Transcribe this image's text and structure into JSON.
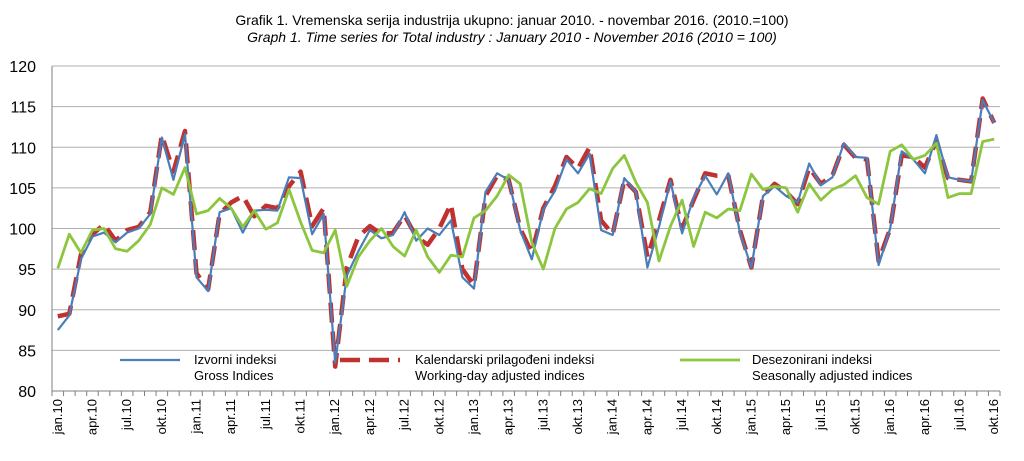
{
  "title": "Grafik 1. Vremenska serija industrija ukupno: januar 2010. - novembar 2016. (2010.=100)",
  "subtitle": "Graph 1. Time series for Total industry : January 2010 - November 2016 (2010 = 100)",
  "chart_data": {
    "type": "line",
    "ylim": [
      80,
      120
    ],
    "yticks": [
      80,
      85,
      90,
      95,
      100,
      105,
      110,
      115,
      120
    ],
    "grid": "horizontal",
    "legend_position": "bottom-inside",
    "x_labels": [
      "jan.10",
      "apr.10",
      "jul.10",
      "okt.10",
      "jan.11",
      "apr.11",
      "jul.11",
      "okt.11",
      "jan.12",
      "apr.12",
      "jul.12",
      "okt.12",
      "jan.13",
      "apr.13",
      "jul.13",
      "okt.13",
      "jan.14",
      "apr.14",
      "jul.14",
      "okt.14",
      "jan.15",
      "apr.15",
      "jul.15",
      "okt.15",
      "jan.16",
      "apr.16",
      "jul.16",
      "okt.16"
    ],
    "series": [
      {
        "name": "Izvorni indeksi",
        "name_en": "Gross Indices",
        "color": "#4a7ebb",
        "style": "solid",
        "values": [
          87.5,
          89.3,
          96.2,
          99.0,
          99.5,
          98.3,
          99.5,
          100.0,
          101.8,
          111.2,
          106.0,
          111.6,
          94.0,
          92.3,
          102.0,
          102.5,
          99.5,
          102.2,
          102.3,
          102.2,
          106.3,
          106.2,
          99.3,
          101.8,
          83.5,
          94.2,
          97.2,
          99.8,
          98.8,
          99.2,
          102.0,
          98.5,
          100.0,
          99.2,
          101.0,
          94.0,
          92.6,
          104.5,
          106.8,
          106.0,
          99.8,
          96.2,
          102.3,
          104.6,
          108.5,
          106.8,
          109.2,
          99.8,
          99.2,
          106.2,
          104.5,
          95.2,
          100.2,
          105.8,
          99.4,
          103.8,
          106.5,
          104.2,
          106.8,
          99.5,
          95.2,
          104.0,
          105.2,
          104.0,
          103.2,
          108.0,
          105.3,
          106.3,
          110.5,
          108.8,
          108.7,
          95.5,
          100.0,
          109.5,
          108.5,
          106.8,
          111.5,
          106.3,
          106.0,
          105.8,
          115.8,
          113.0
        ]
      },
      {
        "name": "Kalendarski prilagođeni indeksi",
        "name_en": "Working-day adjusted indices",
        "color": "#c0312f",
        "style": "dashed",
        "values": [
          89.2,
          89.5,
          96.8,
          99.3,
          100.5,
          98.5,
          99.8,
          100.2,
          102.0,
          111.5,
          107.0,
          112.0,
          94.5,
          92.5,
          101.8,
          103.2,
          104.0,
          101.5,
          102.8,
          102.5,
          105.2,
          107.0,
          100.3,
          102.5,
          83.0,
          95.2,
          99.0,
          100.3,
          99.3,
          99.5,
          101.6,
          99.0,
          98.0,
          100.0,
          103.0,
          95.0,
          93.0,
          104.0,
          106.5,
          106.0,
          100.0,
          97.0,
          102.5,
          105.2,
          108.8,
          107.4,
          110.0,
          101.0,
          99.3,
          106.0,
          104.5,
          96.5,
          101.0,
          106.0,
          100.0,
          103.5,
          106.8,
          106.5,
          106.5,
          99.8,
          95.2,
          104.0,
          105.5,
          104.5,
          103.0,
          107.5,
          105.5,
          106.5,
          110.3,
          108.7,
          108.5,
          96.0,
          100.0,
          109.0,
          108.8,
          107.5,
          110.8,
          106.2,
          106.0,
          105.8,
          116.0,
          113.0
        ]
      },
      {
        "name": "Desezonirani indeksi",
        "name_en": "Seasonally adjusted indices",
        "color": "#8cc63f",
        "style": "solid",
        "values": [
          95.1,
          99.3,
          97.0,
          99.8,
          100.0,
          97.5,
          97.2,
          98.5,
          100.5,
          105.0,
          104.2,
          107.5,
          101.8,
          102.2,
          103.7,
          102.5,
          100.2,
          102.2,
          99.9,
          100.7,
          104.8,
          100.8,
          97.3,
          97.0,
          99.8,
          92.9,
          96.5,
          98.5,
          100.0,
          97.8,
          96.6,
          99.8,
          96.5,
          94.6,
          96.7,
          96.5,
          101.3,
          102.2,
          104.0,
          106.6,
          105.5,
          98.3,
          95.0,
          100.0,
          102.4,
          103.2,
          104.9,
          104.3,
          107.4,
          109.0,
          105.7,
          103.2,
          96.0,
          100.3,
          103.5,
          97.8,
          102.0,
          101.3,
          102.4,
          102.2,
          106.7,
          104.8,
          105.2,
          105.0,
          102.0,
          105.5,
          103.5,
          104.8,
          105.4,
          106.5,
          103.8,
          103.0,
          109.5,
          110.3,
          108.5,
          109.0,
          110.5,
          103.8,
          104.3,
          104.3,
          110.7,
          111.0
        ]
      }
    ]
  }
}
